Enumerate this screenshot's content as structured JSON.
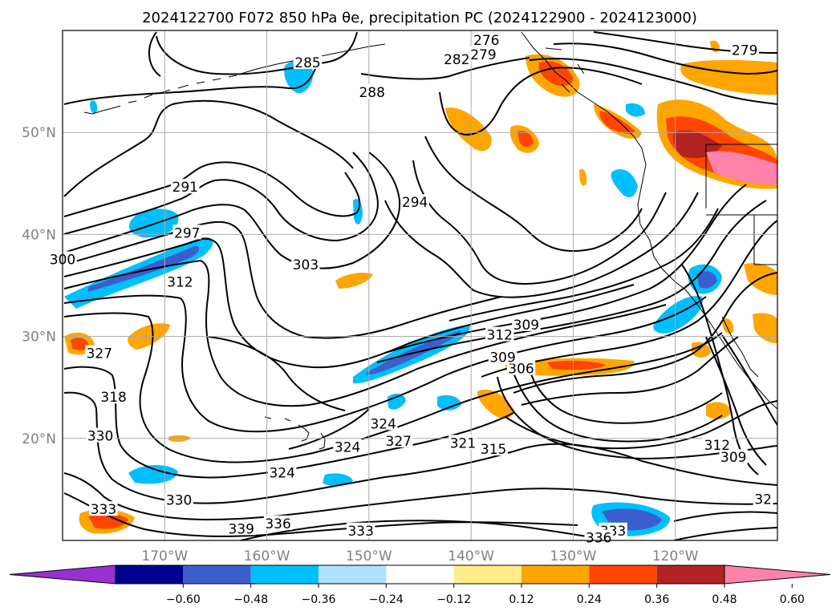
{
  "title": "2024122700 F072 850 hPa θe, precipitation PC (2024122900 - 2024123000)",
  "chart_data": {
    "type": "contour_map",
    "lon_range": [
      -180,
      -110
    ],
    "lat_range": [
      10,
      60
    ],
    "x_ticks": [
      "170°W",
      "160°W",
      "150°W",
      "140°W",
      "130°W",
      "120°W"
    ],
    "x_tick_values": [
      -170,
      -160,
      -150,
      -140,
      -130,
      -120
    ],
    "y_ticks": [
      "20°N",
      "30°N",
      "40°N",
      "50°N"
    ],
    "y_tick_values": [
      20,
      30,
      40,
      50
    ],
    "grid": true,
    "colorbar": {
      "labels": [
        "−0.60",
        "−0.48",
        "−0.36",
        "−0.24",
        "−0.12",
        "0.12",
        "0.24",
        "0.36",
        "0.48",
        "0.60"
      ],
      "bounds": [
        -0.6,
        -0.48,
        -0.36,
        -0.24,
        -0.12,
        0.12,
        0.24,
        0.36,
        0.48,
        0.6
      ],
      "colors": [
        "#9b30d0",
        "#000090",
        "#3a5fcd",
        "#00bfff",
        "#b0e0ff",
        "#ffffff",
        "#ffec8b",
        "#ffa500",
        "#ff4500",
        "#b22222",
        "#ff82ab"
      ],
      "extend": "both"
    },
    "contour_labels": [
      {
        "text": "276",
        "lon": -138.5,
        "lat": 58.9
      },
      {
        "text": "279",
        "lon": -138.8,
        "lat": 57.5
      },
      {
        "text": "279",
        "lon": -113.2,
        "lat": 57.9
      },
      {
        "text": "282",
        "lon": -141.4,
        "lat": 57.0
      },
      {
        "text": "285",
        "lon": -156.0,
        "lat": 56.7
      },
      {
        "text": "288",
        "lon": -149.7,
        "lat": 53.8
      },
      {
        "text": "291",
        "lon": -168.0,
        "lat": 44.5
      },
      {
        "text": "294",
        "lon": -145.5,
        "lat": 43.0
      },
      {
        "text": "297",
        "lon": -167.8,
        "lat": 40.0
      },
      {
        "text": "300",
        "lon": -180.0,
        "lat": 37.4
      },
      {
        "text": "303",
        "lon": -156.2,
        "lat": 36.9
      },
      {
        "text": "306",
        "lon": -135.1,
        "lat": 26.7
      },
      {
        "text": "309",
        "lon": -134.6,
        "lat": 31.0
      },
      {
        "text": "309",
        "lon": -136.9,
        "lat": 27.8
      },
      {
        "text": "309",
        "lon": -114.3,
        "lat": 18.0
      },
      {
        "text": "312",
        "lon": -168.5,
        "lat": 35.2
      },
      {
        "text": "312",
        "lon": -137.2,
        "lat": 30.0
      },
      {
        "text": "312",
        "lon": -115.9,
        "lat": 19.2
      },
      {
        "text": "315",
        "lon": -137.8,
        "lat": 18.8
      },
      {
        "text": "318",
        "lon": -175.0,
        "lat": 23.9
      },
      {
        "text": "321",
        "lon": -140.8,
        "lat": 19.4
      },
      {
        "text": "324",
        "lon": -152.1,
        "lat": 19.0
      },
      {
        "text": "324",
        "lon": -158.5,
        "lat": 16.5
      },
      {
        "text": "324",
        "lon": -148.6,
        "lat": 21.3
      },
      {
        "text": "327",
        "lon": -176.4,
        "lat": 28.2
      },
      {
        "text": "327",
        "lon": -147.1,
        "lat": 19.6
      },
      {
        "text": "330",
        "lon": -176.3,
        "lat": 20.1
      },
      {
        "text": "330",
        "lon": -168.6,
        "lat": 13.8
      },
      {
        "text": "333",
        "lon": -176.0,
        "lat": 12.9
      },
      {
        "text": "333",
        "lon": -150.8,
        "lat": 10.8
      },
      {
        "text": "333",
        "lon": -126.1,
        "lat": 10.8
      },
      {
        "text": "336",
        "lon": -158.9,
        "lat": 11.5
      },
      {
        "text": "336",
        "lon": -127.5,
        "lat": 10.1
      },
      {
        "text": "339",
        "lon": -162.5,
        "lat": 11.0
      },
      {
        "text": "32",
        "lon": -111.4,
        "lat": 13.9
      }
    ]
  }
}
